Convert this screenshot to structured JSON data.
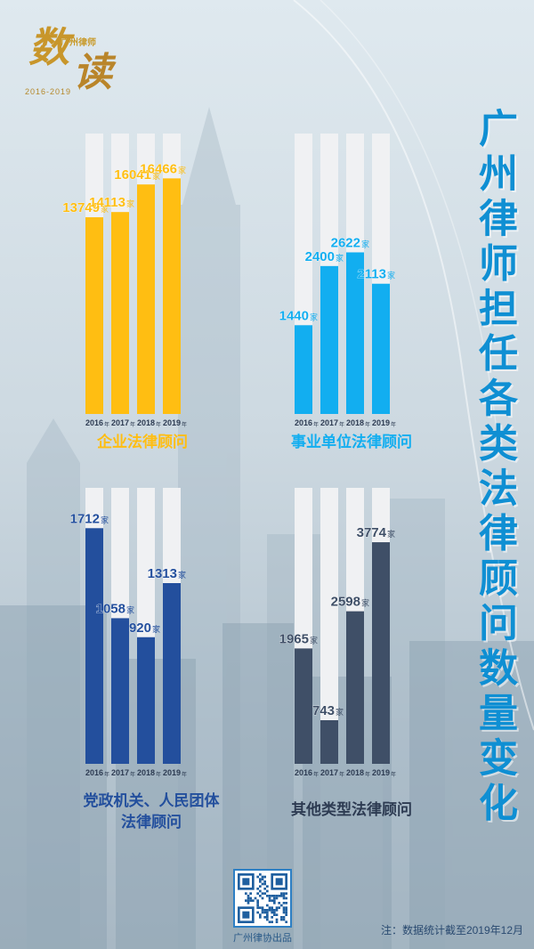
{
  "logo": {
    "brand": "广州律师",
    "script": "数读",
    "years": "2016-2019"
  },
  "title": "广州律师担任各类法律顾问数量变化",
  "unit": "家",
  "year_suffix": "年",
  "colors": {
    "gold": "#ffbe12",
    "cyan": "#12aef0",
    "navy": "#234f9d",
    "slate": "#3f4f67",
    "track": "#f0f1f3",
    "title": "#0f8fd3"
  },
  "chart_data": [
    {
      "type": "bar",
      "title": "企业法律顾问",
      "categories": [
        "2016",
        "2017",
        "2018",
        "2019"
      ],
      "values": [
        13749,
        14113,
        16041,
        16466
      ],
      "ymax": 19600
    },
    {
      "type": "bar",
      "title": "事业单位法律顾问",
      "categories": [
        "2016",
        "2017",
        "2018",
        "2019"
      ],
      "values": [
        1440,
        2400,
        2622,
        2113
      ],
      "ymax": 4550
    },
    {
      "type": "bar",
      "title": "党政机关、人民团体\n法律顾问",
      "categories": [
        "2016",
        "2017",
        "2018",
        "2019"
      ],
      "values": [
        1712,
        1058,
        920,
        1313
      ],
      "ymax": 2005
    },
    {
      "type": "bar",
      "title": "其他类型法律顾问",
      "categories": [
        "2016",
        "2017",
        "2018",
        "2019"
      ],
      "values": [
        1965,
        743,
        2598,
        3774
      ],
      "ymax": 4700
    }
  ],
  "footer": {
    "qr_label": "广州律协出品",
    "note": "注：数据统计截至2019年12月"
  }
}
